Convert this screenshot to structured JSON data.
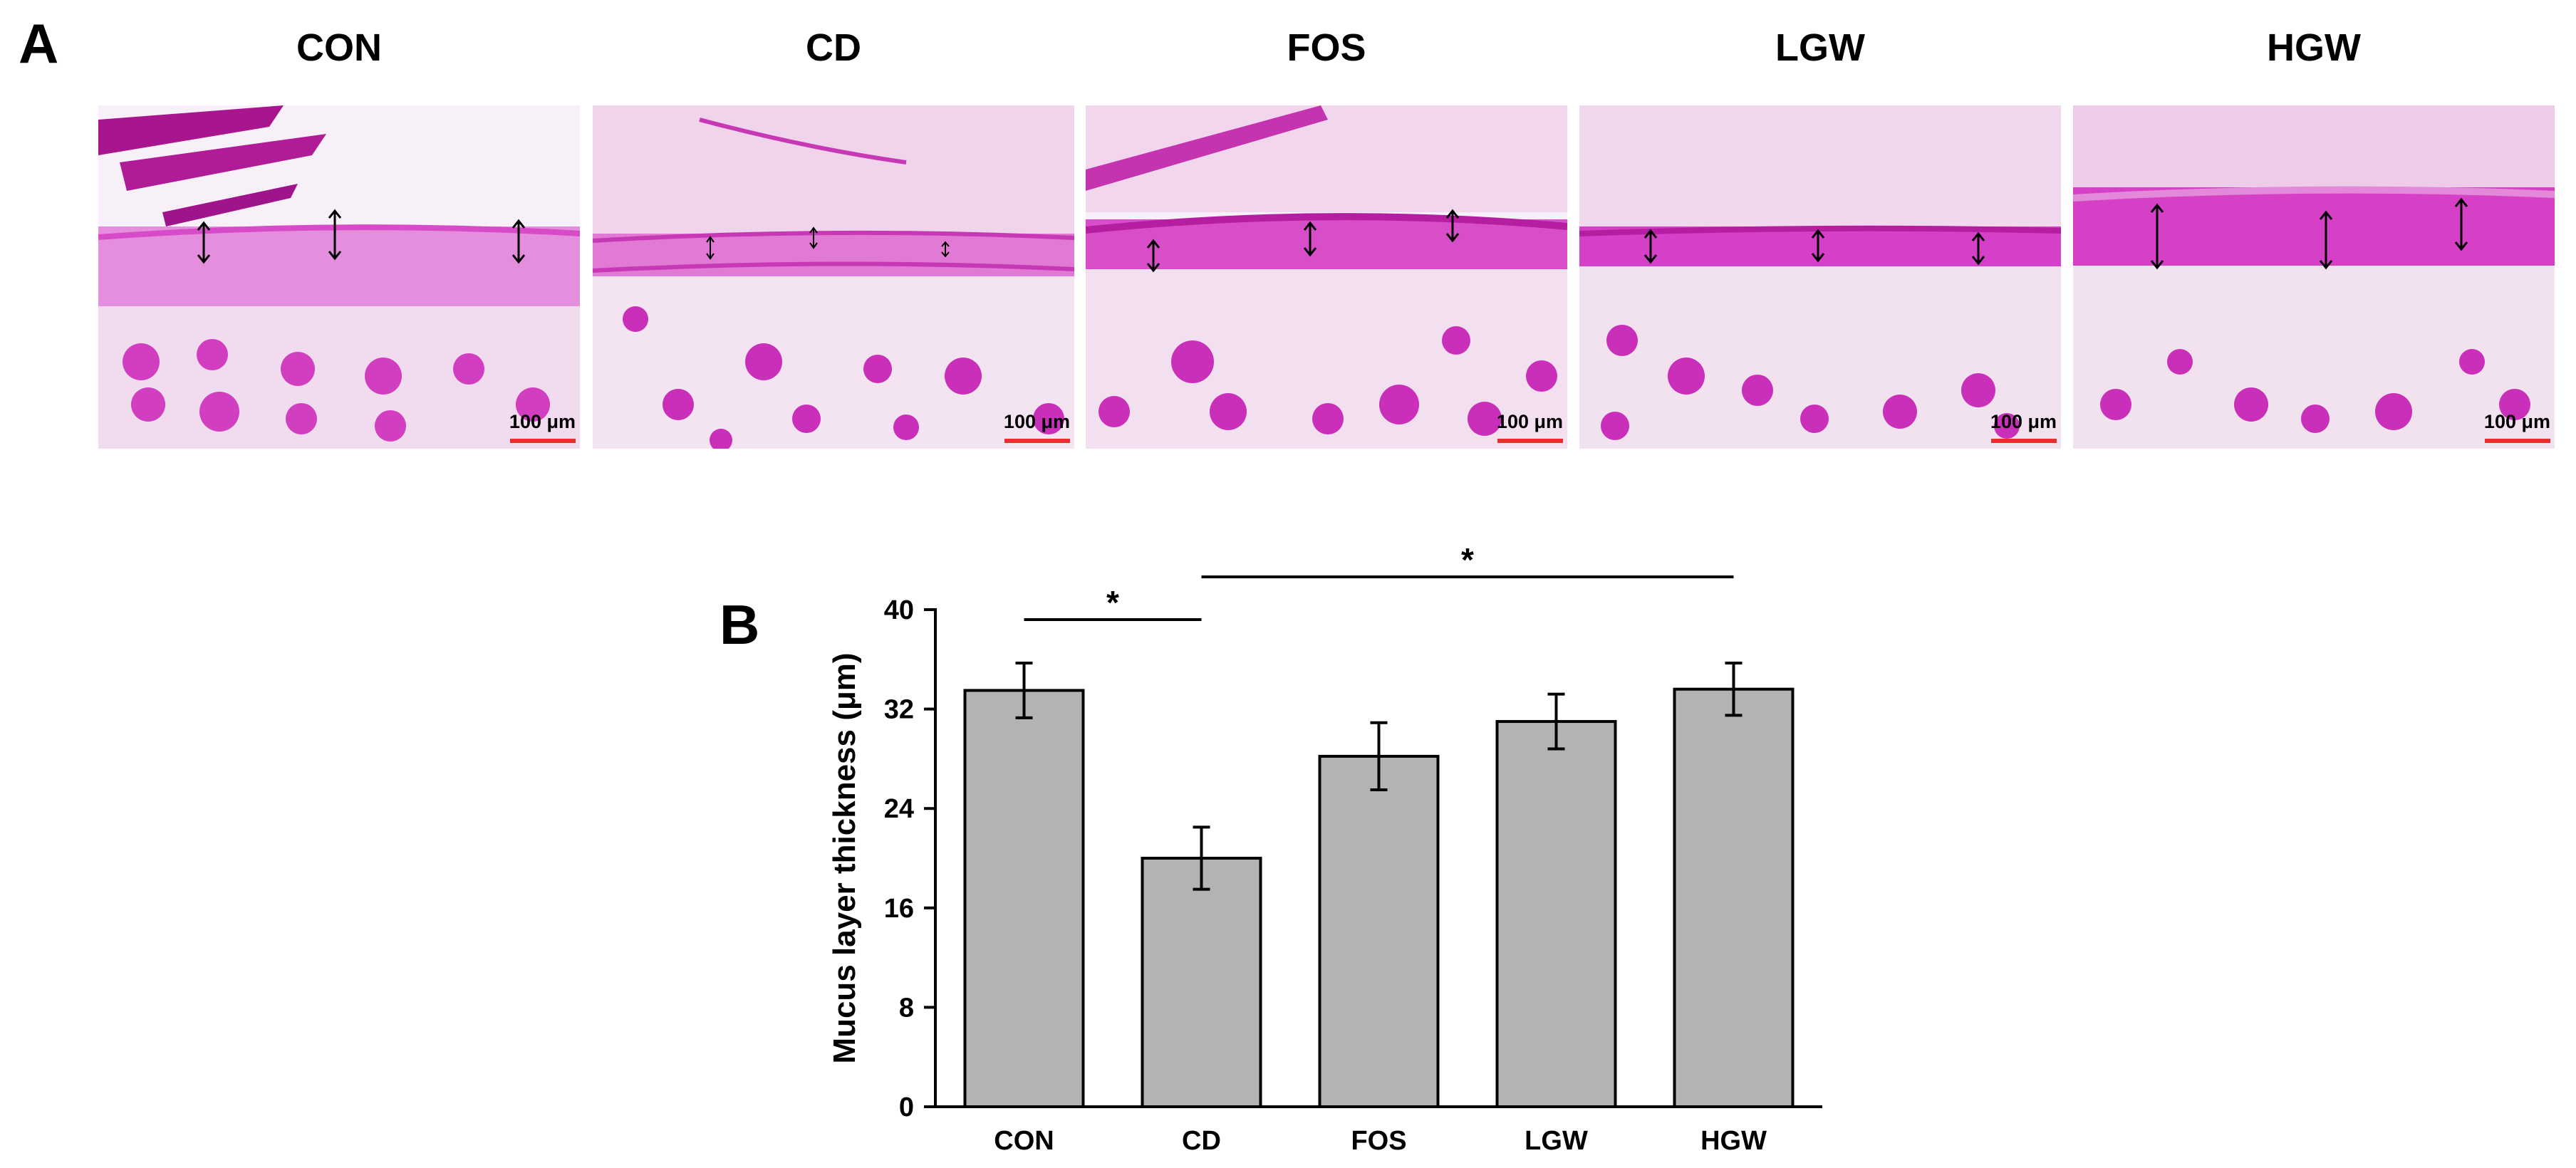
{
  "panel_a": {
    "letter": "A",
    "groups": [
      {
        "title": "CON",
        "scale": "100 μm"
      },
      {
        "title": "CD",
        "scale": "100 μm"
      },
      {
        "title": "FOS",
        "scale": "100 μm"
      },
      {
        "title": "LGW",
        "scale": "100 μm"
      },
      {
        "title": "HGW",
        "scale": "100 μm"
      }
    ],
    "stain_color": "#d63fc7"
  },
  "panel_b": {
    "letter": "B"
  },
  "chart_data": {
    "type": "bar",
    "categories": [
      "CON",
      "CD",
      "FOS",
      "LGW",
      "HGW"
    ],
    "values": [
      33.5,
      20.0,
      28.2,
      31.0,
      33.6
    ],
    "errors": [
      2.2,
      2.5,
      2.7,
      2.2,
      2.1
    ],
    "ylabel": "Mucus layer thickness (μm)",
    "xlabel": "",
    "ylim": [
      0,
      40
    ],
    "yticks": [
      0,
      8,
      16,
      24,
      32,
      40
    ],
    "bar_color": "#b3b3b3",
    "significance": [
      {
        "from": "CON",
        "to": "CD",
        "label": "*"
      },
      {
        "from": "CD",
        "to": "HGW",
        "label": "*"
      }
    ]
  }
}
